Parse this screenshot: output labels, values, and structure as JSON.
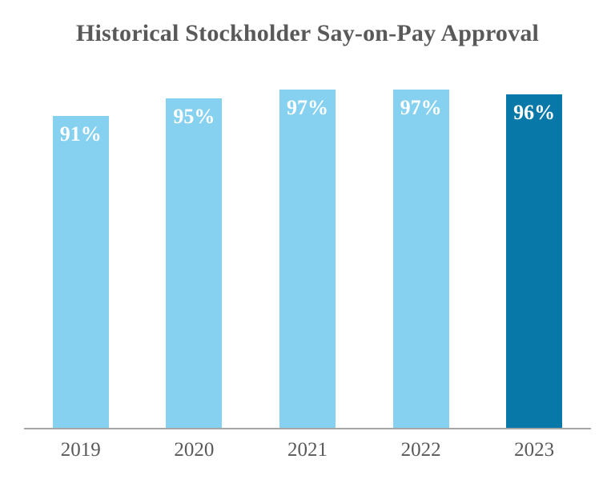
{
  "title": "Historical Stockholder Say-on-Pay Approval",
  "colors": {
    "bar": "#86D1EF",
    "bar_highlight": "#0778A8",
    "bar_label_text": "#FFFFFF",
    "title_text": "#595959",
    "tick_text": "#595959",
    "axis_line": "#A6A6A6",
    "background": "#FFFFFF"
  },
  "chart_data": {
    "type": "bar",
    "title": "Historical Stockholder Say-on-Pay Approval",
    "categories": [
      "2019",
      "2020",
      "2021",
      "2022",
      "2023"
    ],
    "values": [
      91,
      95,
      97,
      97,
      96
    ],
    "value_labels": [
      "91%",
      "95%",
      "97%",
      "97%",
      "96%"
    ],
    "highlighted_index": 4,
    "xlabel": "",
    "ylabel": "",
    "ylim": [
      20,
      100
    ],
    "y_axis_visible": false,
    "grid": false,
    "legend": false,
    "data_label_position": "inside-top"
  }
}
